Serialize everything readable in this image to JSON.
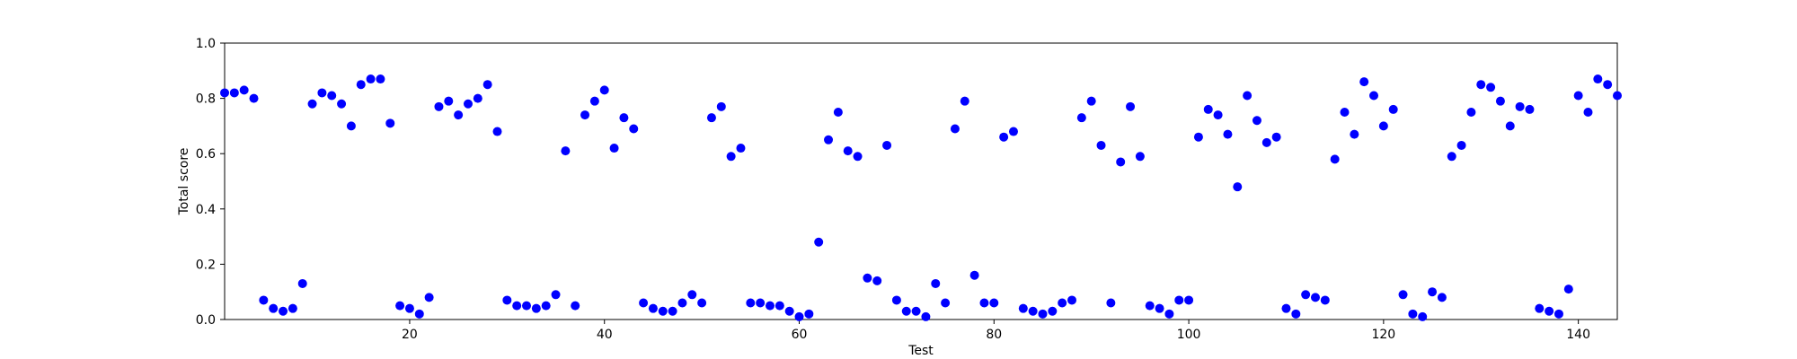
{
  "chart_data": {
    "type": "scatter",
    "title": "",
    "xlabel": "Test",
    "ylabel": "Total score",
    "xlim": [
      1,
      144
    ],
    "ylim": [
      0.0,
      1.0
    ],
    "xticks": [
      20,
      40,
      60,
      80,
      100,
      120,
      140
    ],
    "xtick_labels": [
      "20",
      "40",
      "60",
      "80",
      "100",
      "120",
      "140"
    ],
    "yticks": [
      0.0,
      0.2,
      0.4,
      0.6,
      0.8,
      1.0
    ],
    "ytick_labels": [
      "0.0",
      "0.2",
      "0.4",
      "0.6",
      "0.8",
      "1.0"
    ],
    "grid": false,
    "marker_color": "#0000ff",
    "series": [
      {
        "x": [
          1,
          2,
          3,
          4,
          5,
          6,
          7,
          8,
          9,
          10,
          11,
          12,
          13,
          14,
          15,
          16,
          17,
          18,
          19,
          20,
          21,
          22,
          23,
          24,
          25,
          26,
          27,
          28,
          29,
          30,
          31,
          32,
          33,
          34,
          35,
          36,
          37,
          38,
          39,
          40,
          41,
          42,
          43,
          44,
          45,
          46,
          47,
          48,
          49,
          50,
          51,
          52,
          53,
          54,
          55,
          56,
          57,
          58,
          59,
          60,
          61,
          62,
          63,
          64,
          65,
          66,
          67,
          68,
          69,
          70,
          71,
          72,
          73,
          74,
          75,
          76,
          77,
          78,
          79,
          80,
          81,
          82,
          83,
          84,
          85,
          86,
          87,
          88,
          89,
          90,
          91,
          92,
          93,
          94,
          95,
          96,
          97,
          98,
          99,
          100,
          101,
          102,
          103,
          104,
          105,
          106,
          107,
          108,
          109,
          110,
          111,
          112,
          113,
          114,
          115,
          116,
          117,
          118,
          119,
          120,
          121,
          122,
          123,
          124,
          125,
          126,
          127,
          128,
          129,
          130,
          131,
          132,
          133,
          134,
          135,
          136,
          137,
          138,
          139,
          140,
          141,
          142,
          143,
          144
        ],
        "y": [
          0.82,
          0.82,
          0.83,
          0.8,
          0.07,
          0.04,
          0.03,
          0.04,
          0.13,
          0.78,
          0.82,
          0.81,
          0.78,
          0.7,
          0.85,
          0.87,
          0.87,
          0.71,
          0.05,
          0.04,
          0.02,
          0.08,
          0.77,
          0.79,
          0.74,
          0.78,
          0.8,
          0.85,
          0.68,
          0.07,
          0.05,
          0.05,
          0.04,
          0.05,
          0.09,
          0.61,
          0.05,
          0.74,
          0.79,
          0.83,
          0.62,
          0.73,
          0.69,
          0.06,
          0.04,
          0.03,
          0.03,
          0.06,
          0.09,
          0.06,
          0.73,
          0.77,
          0.59,
          0.62,
          0.06,
          0.06,
          0.05,
          0.05,
          0.03,
          0.01,
          0.02,
          0.28,
          0.65,
          0.75,
          0.61,
          0.59,
          0.15,
          0.14,
          0.63,
          0.07,
          0.03,
          0.03,
          0.01,
          0.13,
          0.06,
          0.69,
          0.79,
          0.16,
          0.06,
          0.06,
          0.66,
          0.68,
          0.04,
          0.03,
          0.02,
          0.03,
          0.06,
          0.07,
          0.73,
          0.79,
          0.63,
          0.06,
          0.57,
          0.77,
          0.59,
          0.05,
          0.04,
          0.02,
          0.07,
          0.07,
          0.66,
          0.76,
          0.74,
          0.67,
          0.48,
          0.81,
          0.72,
          0.64,
          0.66,
          0.04,
          0.02,
          0.09,
          0.08,
          0.07,
          0.58,
          0.75,
          0.67,
          0.86,
          0.81,
          0.7,
          0.76,
          0.09,
          0.02,
          0.01,
          0.1,
          0.08,
          0.59,
          0.63,
          0.75,
          0.85,
          0.84,
          0.79,
          0.7,
          0.77,
          0.76,
          0.04,
          0.03,
          0.02,
          0.11,
          0.81,
          0.75,
          0.87,
          0.85,
          0.81
        ]
      }
    ]
  }
}
